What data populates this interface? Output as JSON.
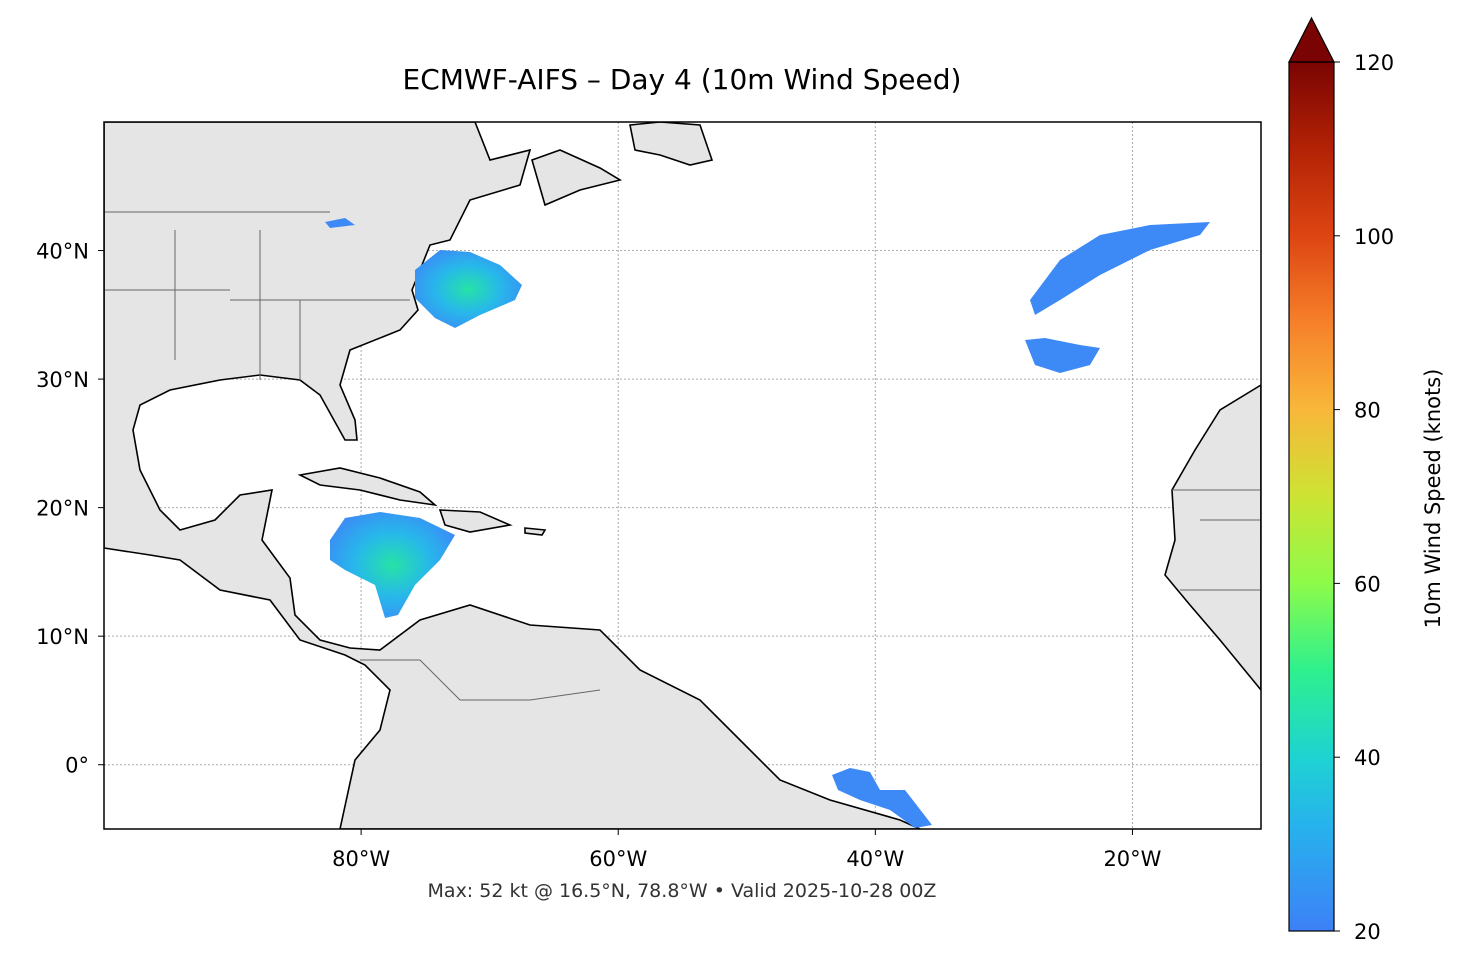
{
  "chart_data": {
    "type": "map",
    "title": "ECMWF-AIFS – Day 4 (10m Wind Speed)",
    "note": "Max: 52 kt @ 16.5°N, 78.8°W • Valid 2025-10-28 00Z",
    "xlim": [
      -100,
      -10
    ],
    "ylim": [
      -5,
      50
    ],
    "xticks": [
      {
        "value": -80,
        "label": "80°W"
      },
      {
        "value": -60,
        "label": "60°W"
      },
      {
        "value": -40,
        "label": "40°W"
      },
      {
        "value": -20,
        "label": "20°W"
      }
    ],
    "yticks": [
      {
        "value": 0,
        "label": "0°"
      },
      {
        "value": 10,
        "label": "10°N"
      },
      {
        "value": 20,
        "label": "20°N"
      },
      {
        "value": 30,
        "label": "30°N"
      },
      {
        "value": 40,
        "label": "40°N"
      }
    ],
    "grid": true,
    "colorbar": {
      "label": "10m Wind Speed (knots)",
      "lim": [
        20,
        120
      ],
      "ticks": [
        20,
        40,
        60,
        80,
        100,
        120
      ],
      "extend": "max"
    }
  }
}
